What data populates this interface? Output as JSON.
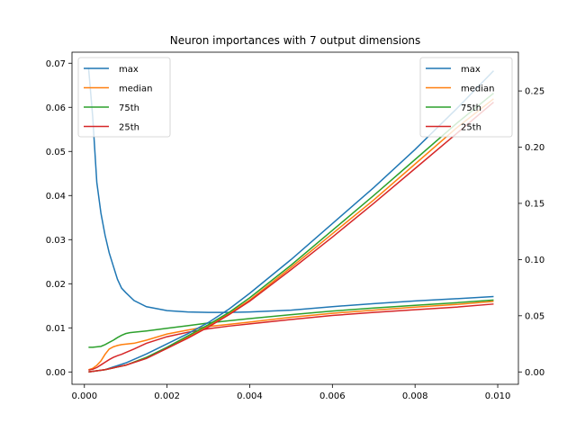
{
  "chart_data": {
    "type": "line",
    "title": "Neuron importances with 7 output dimensions",
    "xlabel": "",
    "ylabel_left": "",
    "ylabel_right": "",
    "x_axis": {
      "range": [
        -0.0003,
        0.0105
      ],
      "ticks": [
        0.0,
        0.002,
        0.004,
        0.006,
        0.008,
        0.01
      ],
      "tick_labels": [
        "0.000",
        "0.002",
        "0.004",
        "0.006",
        "0.008",
        "0.010"
      ]
    },
    "left_axis": {
      "range": [
        -0.0028,
        0.0725
      ],
      "ticks": [
        0.0,
        0.01,
        0.02,
        0.03,
        0.04,
        0.05,
        0.06,
        0.07
      ],
      "tick_labels": [
        "0.00",
        "0.01",
        "0.02",
        "0.03",
        "0.04",
        "0.05",
        "0.06",
        "0.07"
      ]
    },
    "right_axis": {
      "range": [
        -0.011,
        0.2845
      ],
      "ticks": [
        0.0,
        0.05,
        0.1,
        0.15,
        0.2,
        0.25
      ],
      "tick_labels": [
        "0.00",
        "0.05",
        "0.10",
        "0.15",
        "0.20",
        "0.25"
      ]
    },
    "grid": false,
    "colors": {
      "max": "#1f77b4",
      "median": "#ff7f0e",
      "75th": "#2ca02c",
      "25th": "#d62728"
    },
    "left_series": [
      {
        "name": "max",
        "axis": "left",
        "x": [
          0.0001,
          0.0002,
          0.0003,
          0.0004,
          0.0005,
          0.0006,
          0.0007,
          0.0008,
          0.0009,
          0.001,
          0.0012,
          0.0015,
          0.002,
          0.0025,
          0.003,
          0.0035,
          0.004,
          0.005,
          0.006,
          0.007,
          0.008,
          0.009,
          0.0099
        ],
        "y": [
          0.069,
          0.058,
          0.043,
          0.036,
          0.031,
          0.027,
          0.024,
          0.021,
          0.019,
          0.018,
          0.0162,
          0.0148,
          0.0139,
          0.0136,
          0.0135,
          0.0135,
          0.0136,
          0.014,
          0.0148,
          0.0155,
          0.0161,
          0.0166,
          0.0171
        ]
      },
      {
        "name": "median",
        "axis": "left",
        "x": [
          0.0001,
          0.0002,
          0.0003,
          0.0004,
          0.0005,
          0.0006,
          0.0007,
          0.0008,
          0.0009,
          0.001,
          0.0012,
          0.0015,
          0.002,
          0.0025,
          0.003,
          0.0035,
          0.004,
          0.005,
          0.006,
          0.007,
          0.008,
          0.009,
          0.0099
        ],
        "y": [
          0.0005,
          0.0008,
          0.0015,
          0.0025,
          0.004,
          0.0052,
          0.0057,
          0.006,
          0.0062,
          0.0063,
          0.0065,
          0.0072,
          0.0086,
          0.0095,
          0.0103,
          0.0108,
          0.0113,
          0.0124,
          0.0133,
          0.014,
          0.0147,
          0.0153,
          0.016
        ]
      },
      {
        "name": "75th",
        "axis": "left",
        "x": [
          0.0001,
          0.0002,
          0.0003,
          0.0004,
          0.0005,
          0.0006,
          0.0007,
          0.0008,
          0.0009,
          0.001,
          0.0011,
          0.0012,
          0.0015,
          0.002,
          0.0025,
          0.003,
          0.0035,
          0.004,
          0.005,
          0.006,
          0.007,
          0.008,
          0.009,
          0.0099
        ],
        "y": [
          0.0056,
          0.0056,
          0.0057,
          0.0058,
          0.0062,
          0.0067,
          0.0072,
          0.0078,
          0.0083,
          0.0087,
          0.0089,
          0.009,
          0.0093,
          0.0099,
          0.0105,
          0.0111,
          0.0116,
          0.0121,
          0.013,
          0.0138,
          0.0145,
          0.0151,
          0.0157,
          0.0163
        ]
      },
      {
        "name": "25th",
        "axis": "left",
        "x": [
          0.0001,
          0.0002,
          0.0003,
          0.0004,
          0.0005,
          0.0006,
          0.0007,
          0.0008,
          0.0009,
          0.001,
          0.0012,
          0.0015,
          0.002,
          0.0025,
          0.003,
          0.0035,
          0.004,
          0.005,
          0.006,
          0.007,
          0.008,
          0.009,
          0.0099
        ],
        "y": [
          0.0004,
          0.0006,
          0.001,
          0.0016,
          0.0022,
          0.0028,
          0.0033,
          0.0037,
          0.004,
          0.0044,
          0.0052,
          0.0065,
          0.008,
          0.009,
          0.0098,
          0.0104,
          0.0109,
          0.0119,
          0.0128,
          0.0135,
          0.0141,
          0.0147,
          0.0154
        ]
      }
    ],
    "right_series": [
      {
        "name": "max",
        "axis": "right",
        "x": [
          0.0001,
          0.0005,
          0.001,
          0.0015,
          0.002,
          0.0025,
          0.003,
          0.0035,
          0.004,
          0.005,
          0.006,
          0.007,
          0.008,
          0.009,
          0.0099
        ],
        "y": [
          0.0,
          0.002,
          0.008,
          0.016,
          0.025,
          0.034,
          0.044,
          0.056,
          0.07,
          0.1,
          0.132,
          0.164,
          0.198,
          0.234,
          0.268
        ]
      },
      {
        "name": "median",
        "axis": "right",
        "x": [
          0.0001,
          0.0005,
          0.001,
          0.0015,
          0.002,
          0.0025,
          0.003,
          0.0035,
          0.004,
          0.005,
          0.006,
          0.007,
          0.008,
          0.009,
          0.0099
        ],
        "y": [
          0.0,
          0.002,
          0.006,
          0.013,
          0.021,
          0.031,
          0.041,
          0.052,
          0.064,
          0.093,
          0.123,
          0.153,
          0.185,
          0.217,
          0.243
        ]
      },
      {
        "name": "75th",
        "axis": "right",
        "x": [
          0.0001,
          0.0005,
          0.001,
          0.0015,
          0.002,
          0.0025,
          0.003,
          0.0035,
          0.004,
          0.005,
          0.006,
          0.007,
          0.008,
          0.009,
          0.0099
        ],
        "y": [
          0.0,
          0.002,
          0.006,
          0.013,
          0.022,
          0.032,
          0.042,
          0.053,
          0.066,
          0.095,
          0.126,
          0.157,
          0.189,
          0.221,
          0.248
        ]
      },
      {
        "name": "25th",
        "axis": "right",
        "x": [
          0.0001,
          0.0005,
          0.001,
          0.0015,
          0.002,
          0.0025,
          0.003,
          0.0035,
          0.004,
          0.005,
          0.006,
          0.007,
          0.008,
          0.009,
          0.0099
        ],
        "y": [
          0.0,
          0.002,
          0.006,
          0.012,
          0.021,
          0.03,
          0.04,
          0.051,
          0.063,
          0.091,
          0.12,
          0.15,
          0.181,
          0.212,
          0.24
        ]
      }
    ],
    "legends": [
      {
        "placement": "upper-left",
        "entries": [
          "max",
          "median",
          "75th",
          "25th"
        ]
      },
      {
        "placement": "upper-right",
        "entries": [
          "max",
          "median",
          "75th",
          "25th"
        ]
      }
    ]
  }
}
